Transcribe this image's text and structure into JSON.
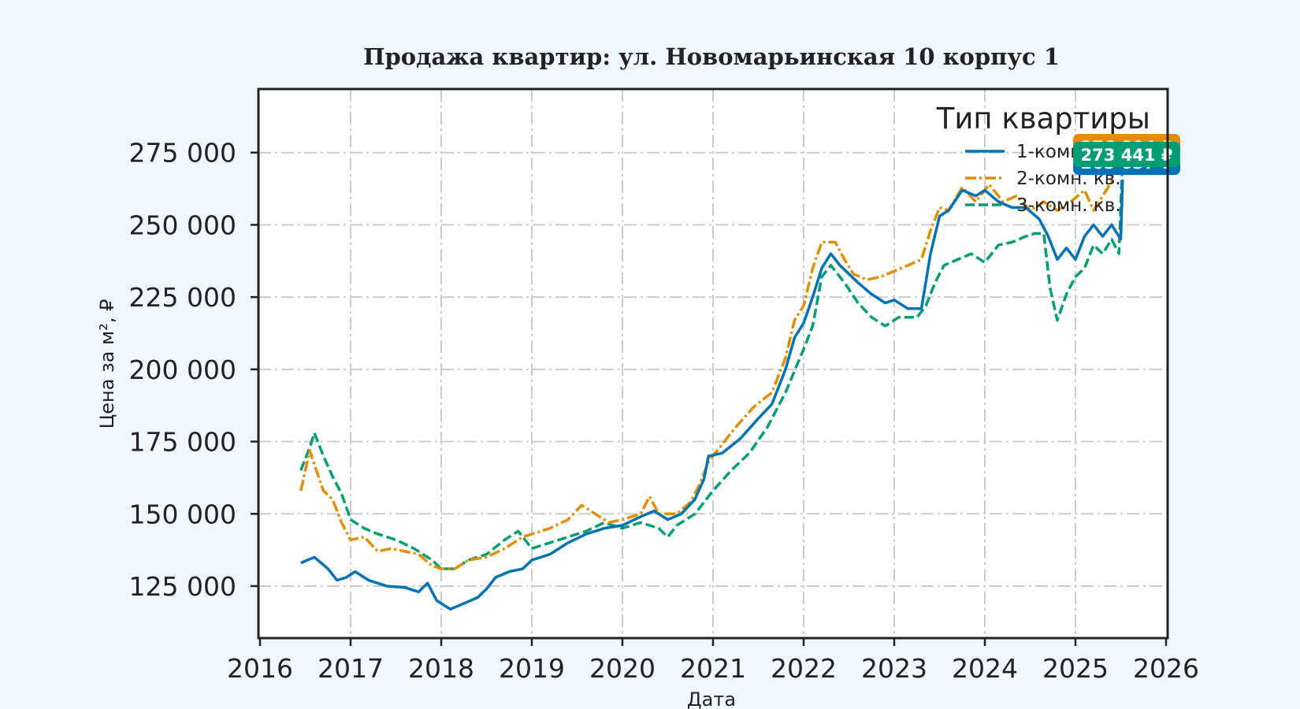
{
  "chart_data": {
    "type": "line",
    "title": "Продажа квартир: ул. Новомарьинская 10 корпус 1",
    "xlabel": "Дата",
    "ylabel": "Цена за м², ₽",
    "xlim": [
      2016,
      2026
    ],
    "ylim": [
      107000,
      297000
    ],
    "x_ticks": [
      "2016",
      "2017",
      "2018",
      "2019",
      "2020",
      "2021",
      "2022",
      "2023",
      "2024",
      "2025",
      "2026"
    ],
    "y_ticks": [
      {
        "value": 125000,
        "label": "125 000"
      },
      {
        "value": 150000,
        "label": "150 000"
      },
      {
        "value": 175000,
        "label": "175 000"
      },
      {
        "value": 200000,
        "label": "200 000"
      },
      {
        "value": 225000,
        "label": "225 000"
      },
      {
        "value": 250000,
        "label": "250 000"
      },
      {
        "value": 275000,
        "label": "275 000"
      }
    ],
    "grid": true,
    "legend": {
      "title": "Тип квартиры",
      "position": "top-right"
    },
    "series": [
      {
        "name": "1-комн. кв.",
        "color": "#0173b2",
        "dash": "solid",
        "points": [
          [
            2016.45,
            133000
          ],
          [
            2016.6,
            135000
          ],
          [
            2016.75,
            131000
          ],
          [
            2016.85,
            127000
          ],
          [
            2016.95,
            128000
          ],
          [
            2017.05,
            130000
          ],
          [
            2017.2,
            127000
          ],
          [
            2017.4,
            125000
          ],
          [
            2017.6,
            124500
          ],
          [
            2017.75,
            123000
          ],
          [
            2017.85,
            126000
          ],
          [
            2017.95,
            120000
          ],
          [
            2018.1,
            117000
          ],
          [
            2018.25,
            119000
          ],
          [
            2018.4,
            121000
          ],
          [
            2018.5,
            124000
          ],
          [
            2018.6,
            128000
          ],
          [
            2018.75,
            130000
          ],
          [
            2018.9,
            131000
          ],
          [
            2019.0,
            134000
          ],
          [
            2019.2,
            136000
          ],
          [
            2019.4,
            140000
          ],
          [
            2019.6,
            143000
          ],
          [
            2019.8,
            145000
          ],
          [
            2020.0,
            146000
          ],
          [
            2020.2,
            149000
          ],
          [
            2020.35,
            151000
          ],
          [
            2020.5,
            148000
          ],
          [
            2020.65,
            150000
          ],
          [
            2020.8,
            155000
          ],
          [
            2020.9,
            162000
          ],
          [
            2020.95,
            170000
          ],
          [
            2021.1,
            171000
          ],
          [
            2021.3,
            176000
          ],
          [
            2021.5,
            183000
          ],
          [
            2021.65,
            188000
          ],
          [
            2021.8,
            200000
          ],
          [
            2021.9,
            211000
          ],
          [
            2022.0,
            216000
          ],
          [
            2022.1,
            225000
          ],
          [
            2022.2,
            235000
          ],
          [
            2022.3,
            240000
          ],
          [
            2022.4,
            236000
          ],
          [
            2022.5,
            233000
          ],
          [
            2022.6,
            230000
          ],
          [
            2022.75,
            226000
          ],
          [
            2022.9,
            223000
          ],
          [
            2023.0,
            224000
          ],
          [
            2023.15,
            221000
          ],
          [
            2023.3,
            221000
          ],
          [
            2023.4,
            240000
          ],
          [
            2023.5,
            253000
          ],
          [
            2023.6,
            255000
          ],
          [
            2023.75,
            262000
          ],
          [
            2023.9,
            260000
          ],
          [
            2024.0,
            262000
          ],
          [
            2024.15,
            258000
          ],
          [
            2024.3,
            256000
          ],
          [
            2024.45,
            256000
          ],
          [
            2024.6,
            252000
          ],
          [
            2024.7,
            246000
          ],
          [
            2024.8,
            238000
          ],
          [
            2024.9,
            242000
          ],
          [
            2025.0,
            238000
          ],
          [
            2025.1,
            246000
          ],
          [
            2025.2,
            250000
          ],
          [
            2025.3,
            246000
          ],
          [
            2025.4,
            250000
          ],
          [
            2025.5,
            245000
          ],
          [
            2025.52,
            265637
          ]
        ]
      },
      {
        "name": "2-комн. кв.",
        "color": "#de8f05",
        "dash": "dashdot",
        "points": [
          [
            2016.45,
            158000
          ],
          [
            2016.5,
            165000
          ],
          [
            2016.55,
            172000
          ],
          [
            2016.6,
            167000
          ],
          [
            2016.7,
            158000
          ],
          [
            2016.8,
            155000
          ],
          [
            2016.9,
            147000
          ],
          [
            2017.0,
            141000
          ],
          [
            2017.15,
            142000
          ],
          [
            2017.3,
            137000
          ],
          [
            2017.45,
            138000
          ],
          [
            2017.6,
            137000
          ],
          [
            2017.75,
            136000
          ],
          [
            2017.9,
            132000
          ],
          [
            2018.0,
            131000
          ],
          [
            2018.15,
            131000
          ],
          [
            2018.3,
            134000
          ],
          [
            2018.5,
            135000
          ],
          [
            2018.7,
            138000
          ],
          [
            2018.9,
            142000
          ],
          [
            2019.0,
            143000
          ],
          [
            2019.2,
            145000
          ],
          [
            2019.4,
            148000
          ],
          [
            2019.55,
            153000
          ],
          [
            2019.7,
            150000
          ],
          [
            2019.85,
            147000
          ],
          [
            2020.0,
            148000
          ],
          [
            2020.2,
            150000
          ],
          [
            2020.3,
            156000
          ],
          [
            2020.4,
            150000
          ],
          [
            2020.6,
            150000
          ],
          [
            2020.75,
            154000
          ],
          [
            2020.85,
            160000
          ],
          [
            2020.95,
            168000
          ],
          [
            2021.1,
            174000
          ],
          [
            2021.25,
            180000
          ],
          [
            2021.45,
            187000
          ],
          [
            2021.65,
            192000
          ],
          [
            2021.8,
            204000
          ],
          [
            2021.9,
            217000
          ],
          [
            2022.0,
            222000
          ],
          [
            2022.1,
            235000
          ],
          [
            2022.2,
            244000
          ],
          [
            2022.35,
            244000
          ],
          [
            2022.45,
            238000
          ],
          [
            2022.55,
            233000
          ],
          [
            2022.7,
            231000
          ],
          [
            2022.85,
            232000
          ],
          [
            2023.0,
            234000
          ],
          [
            2023.15,
            236000
          ],
          [
            2023.3,
            238000
          ],
          [
            2023.4,
            248000
          ],
          [
            2023.5,
            256000
          ],
          [
            2023.6,
            255000
          ],
          [
            2023.75,
            263000
          ],
          [
            2023.9,
            258000
          ],
          [
            2024.05,
            264000
          ],
          [
            2024.2,
            258000
          ],
          [
            2024.35,
            260000
          ],
          [
            2024.5,
            255000
          ],
          [
            2024.65,
            258000
          ],
          [
            2024.8,
            255000
          ],
          [
            2024.95,
            258000
          ],
          [
            2025.1,
            262000
          ],
          [
            2025.2,
            255000
          ],
          [
            2025.3,
            260000
          ],
          [
            2025.4,
            265000
          ],
          [
            2025.45,
            280000
          ],
          [
            2025.52,
            276804
          ]
        ]
      },
      {
        "name": "3-комн. кв.",
        "color": "#029e73",
        "dash": "dashed",
        "points": [
          [
            2016.45,
            165000
          ],
          [
            2016.55,
            173000
          ],
          [
            2016.6,
            178000
          ],
          [
            2016.7,
            170000
          ],
          [
            2016.8,
            163000
          ],
          [
            2016.9,
            157000
          ],
          [
            2017.0,
            148000
          ],
          [
            2017.15,
            145000
          ],
          [
            2017.3,
            143000
          ],
          [
            2017.5,
            141000
          ],
          [
            2017.7,
            138000
          ],
          [
            2017.9,
            134000
          ],
          [
            2018.0,
            131000
          ],
          [
            2018.15,
            131000
          ],
          [
            2018.3,
            134000
          ],
          [
            2018.5,
            136000
          ],
          [
            2018.7,
            141000
          ],
          [
            2018.85,
            144000
          ],
          [
            2019.0,
            138000
          ],
          [
            2019.2,
            140000
          ],
          [
            2019.4,
            142000
          ],
          [
            2019.6,
            144000
          ],
          [
            2019.8,
            147000
          ],
          [
            2020.0,
            145000
          ],
          [
            2020.2,
            147000
          ],
          [
            2020.4,
            145000
          ],
          [
            2020.5,
            142000
          ],
          [
            2020.6,
            146000
          ],
          [
            2020.8,
            150000
          ],
          [
            2021.0,
            158000
          ],
          [
            2021.2,
            165000
          ],
          [
            2021.4,
            171000
          ],
          [
            2021.6,
            180000
          ],
          [
            2021.8,
            192000
          ],
          [
            2022.0,
            207000
          ],
          [
            2022.1,
            215000
          ],
          [
            2022.2,
            232000
          ],
          [
            2022.3,
            236000
          ],
          [
            2022.45,
            230000
          ],
          [
            2022.6,
            223000
          ],
          [
            2022.75,
            218000
          ],
          [
            2022.9,
            215000
          ],
          [
            2023.05,
            218000
          ],
          [
            2023.25,
            218000
          ],
          [
            2023.35,
            222000
          ],
          [
            2023.45,
            230000
          ],
          [
            2023.55,
            236000
          ],
          [
            2023.7,
            238000
          ],
          [
            2023.85,
            240000
          ],
          [
            2024.0,
            237000
          ],
          [
            2024.15,
            243000
          ],
          [
            2024.3,
            244000
          ],
          [
            2024.45,
            246000
          ],
          [
            2024.55,
            247000
          ],
          [
            2024.65,
            247000
          ],
          [
            2024.72,
            228000
          ],
          [
            2024.8,
            217000
          ],
          [
            2024.9,
            226000
          ],
          [
            2025.0,
            232000
          ],
          [
            2025.1,
            235000
          ],
          [
            2025.2,
            243000
          ],
          [
            2025.3,
            240000
          ],
          [
            2025.4,
            245000
          ],
          [
            2025.48,
            240000
          ],
          [
            2025.52,
            273441
          ]
        ]
      }
    ],
    "end_labels": [
      {
        "series": "2-комн. кв.",
        "value": 276804,
        "label": "276 804 ₽",
        "color": "#de8f05"
      },
      {
        "series": "1-комн. кв.",
        "value": 265637,
        "label": "265 637 ₽",
        "color": "#0173b2"
      },
      {
        "series": "3-комн. кв.",
        "value": 273441,
        "label": "273 441 ₽",
        "color": "#029e73"
      }
    ]
  }
}
